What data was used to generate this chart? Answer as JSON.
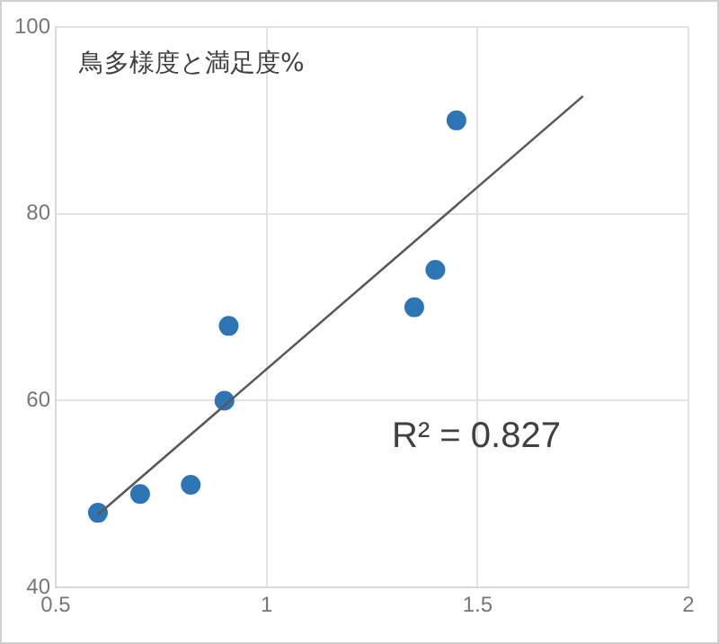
{
  "chart_data": {
    "type": "scatter",
    "title": "鳥多様度と満足度%",
    "marker": "circle",
    "grid": true,
    "legend": false,
    "xlim": [
      0.5,
      2
    ],
    "xticks": [
      0.5,
      1,
      1.5,
      2
    ],
    "ylim": [
      40,
      100
    ],
    "yticks": [
      40,
      60,
      80,
      100
    ],
    "annotations": [
      "R² = 0.827"
    ],
    "series": [
      {
        "type": "scatter",
        "color": "#2e75b6",
        "x": [
          0.6,
          0.7,
          0.82,
          0.9,
          0.91,
          1.35,
          1.4,
          1.45
        ],
        "values": [
          48,
          50,
          51,
          60,
          68,
          70,
          74,
          90
        ]
      },
      {
        "type": "line",
        "color": "#595959",
        "marker": "none",
        "x": [
          0.6,
          1.75
        ],
        "values": [
          47.8,
          92.6
        ]
      }
    ]
  }
}
